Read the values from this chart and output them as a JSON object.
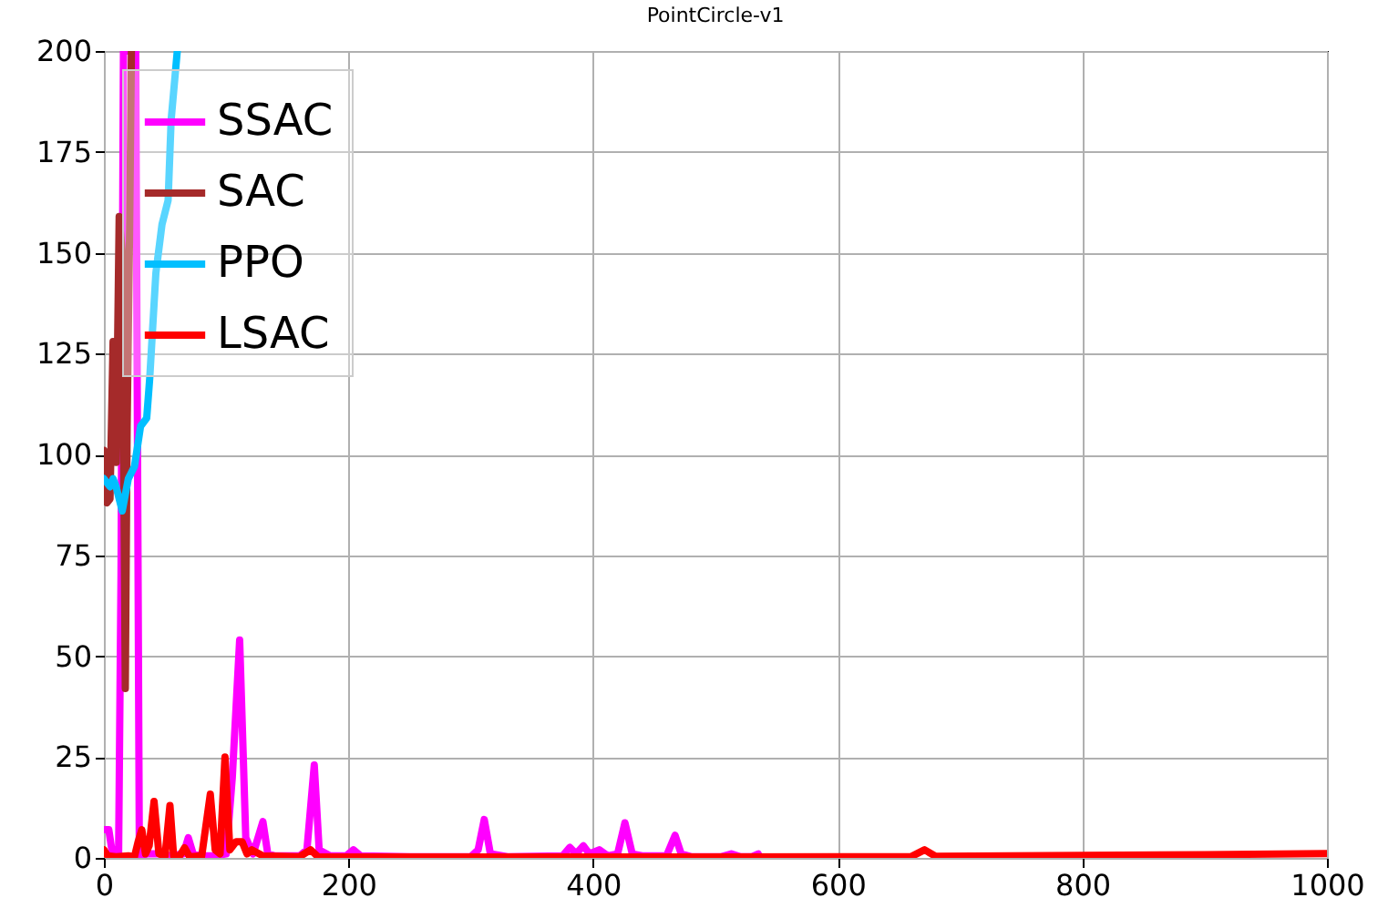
{
  "chart_data": {
    "type": "line",
    "title": "PointCircle-v1",
    "xlim": [
      0,
      1000
    ],
    "xticks": [
      0,
      200,
      400,
      600,
      800,
      {
        "value": 1000,
        "label": "1000"
      }
    ],
    "ylim": [
      0,
      200
    ],
    "yticks": [
      0,
      25,
      50,
      75,
      100,
      125,
      150,
      175,
      200
    ],
    "grid": true,
    "legend": "top left",
    "line_style": "solid",
    "marker": "none",
    "series": [
      {
        "name": "SSAC",
        "color": "#ff00ff",
        "x": [
          0,
          4,
          7,
          10,
          12,
          14,
          16,
          26,
          29,
          35,
          45,
          55,
          65,
          69,
          73,
          80,
          90,
          100,
          105,
          111,
          116,
          122,
          126,
          130,
          134,
          140,
          160,
          166,
          172,
          176,
          185,
          198,
          204,
          210,
          250,
          300,
          306,
          311,
          316,
          330,
          375,
          381,
          386,
          392,
          397,
          405,
          412,
          420,
          426,
          432,
          440,
          460,
          467,
          472,
          480,
          505,
          513,
          520,
          530,
          535
        ],
        "values": [
          7,
          7,
          1,
          0,
          0,
          70,
          200,
          200,
          0,
          1,
          1,
          0.5,
          1,
          5,
          1,
          0.5,
          0.5,
          1,
          20,
          54,
          5,
          1,
          5,
          9,
          1,
          0.5,
          0.5,
          2,
          23,
          2,
          0.5,
          0.5,
          2,
          0.5,
          0.3,
          0.3,
          2,
          9.5,
          1,
          0.3,
          0.5,
          2.6,
          1,
          3,
          1,
          2,
          0.5,
          1,
          8.7,
          1,
          0.5,
          0.5,
          5.6,
          1,
          0.3,
          0.3,
          1,
          0.3,
          0.3,
          1
        ]
      },
      {
        "name": "SAC",
        "color": "#a52a2a",
        "x": [
          0,
          2.5,
          5,
          7.5,
          10,
          12.5,
          15,
          17.5,
          19,
          21,
          22.5
        ],
        "values": [
          101,
          88,
          89,
          128,
          98,
          159,
          150,
          42,
          107,
          155,
          200
        ]
      },
      {
        "name": "PPO",
        "color": "#00bfff",
        "x": [
          0,
          5,
          7.5,
          10,
          15,
          20,
          25,
          30,
          35,
          37.5,
          42.5,
          47.5,
          52.5,
          55,
          60
        ],
        "values": [
          94,
          92,
          94,
          92,
          86,
          94,
          97,
          107,
          109,
          119,
          145,
          157,
          163,
          183,
          200
        ]
      },
      {
        "name": "LSAC",
        "color": "#ff0000",
        "x": [
          0,
          3,
          10,
          20,
          25,
          28,
          31,
          34,
          37,
          41,
          45,
          50,
          54,
          57,
          62,
          66,
          70,
          80,
          87,
          91,
          95,
          99,
          103,
          108,
          113,
          117,
          121,
          130,
          160,
          169,
          175,
          250,
          400,
          600,
          660,
          671,
          680,
          800,
          900,
          1000
        ],
        "values": [
          2,
          0.5,
          0.3,
          0.5,
          0.3,
          4,
          7,
          1,
          3,
          14,
          1,
          0.5,
          13,
          0.5,
          0.5,
          2.5,
          0.3,
          0.5,
          15.8,
          2,
          1,
          25,
          2,
          4,
          4,
          1,
          2,
          0.5,
          0.3,
          2,
          0.3,
          0.2,
          0.2,
          0.3,
          0.3,
          2,
          0.4,
          0.6,
          0.8,
          1.1
        ]
      }
    ]
  }
}
